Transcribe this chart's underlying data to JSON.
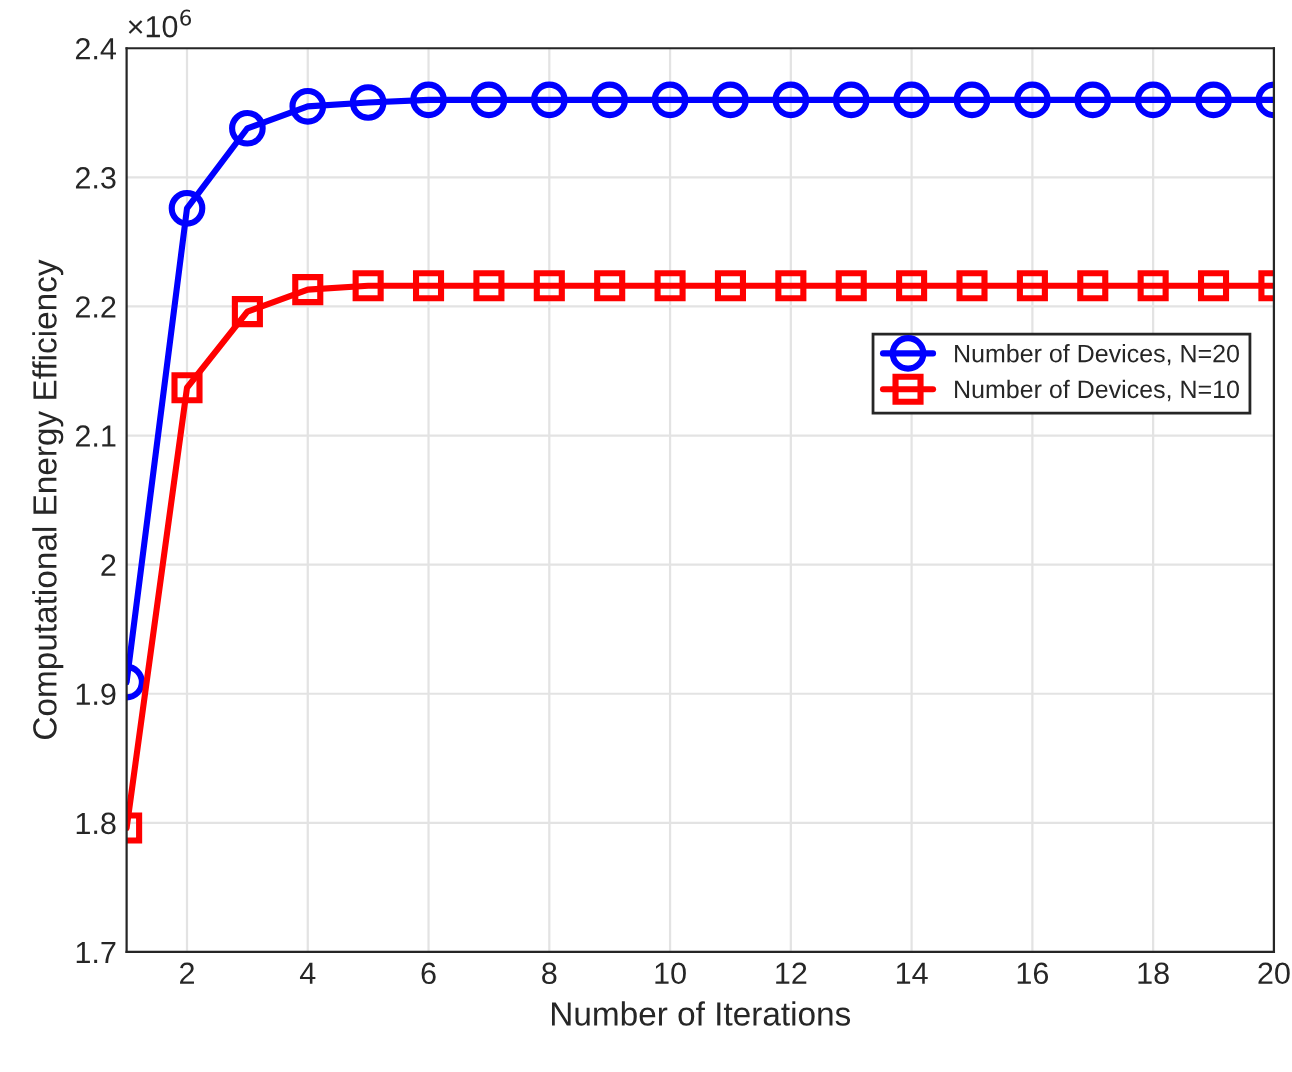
{
  "chart_data": {
    "type": "line",
    "xlabel": "Number of Iterations",
    "ylabel": "Computational Energy Efficiency",
    "x": [
      1,
      2,
      3,
      4,
      5,
      6,
      7,
      8,
      9,
      10,
      11,
      12,
      13,
      14,
      15,
      16,
      17,
      18,
      19,
      20
    ],
    "series": [
      {
        "name": "Number of Devices, N=20",
        "color": "#0000ff",
        "marker": "circle",
        "values": [
          1.909,
          2.276,
          2.338,
          2.355,
          2.358,
          2.36,
          2.36,
          2.36,
          2.36,
          2.36,
          2.36,
          2.36,
          2.36,
          2.36,
          2.36,
          2.36,
          2.36,
          2.36,
          2.36,
          2.36
        ]
      },
      {
        "name": "Number of Devices, N=10",
        "color": "#ff0000",
        "marker": "square",
        "values": [
          1.796,
          2.137,
          2.196,
          2.213,
          2.216,
          2.216,
          2.216,
          2.216,
          2.216,
          2.216,
          2.216,
          2.216,
          2.216,
          2.216,
          2.216,
          2.216,
          2.216,
          2.216,
          2.216,
          2.216
        ]
      }
    ],
    "xlim": [
      1,
      20
    ],
    "xticks": [
      2,
      4,
      6,
      8,
      10,
      12,
      14,
      16,
      18,
      20
    ],
    "ylim": [
      1.7,
      2.4
    ],
    "yticks": [
      1.7,
      1.8,
      1.9,
      2,
      2.1,
      2.2,
      2.3,
      2.4
    ],
    "annotations": [
      "×10$^{6}$"
    ],
    "grid": true,
    "legend": "right",
    "line_style": "solid"
  }
}
